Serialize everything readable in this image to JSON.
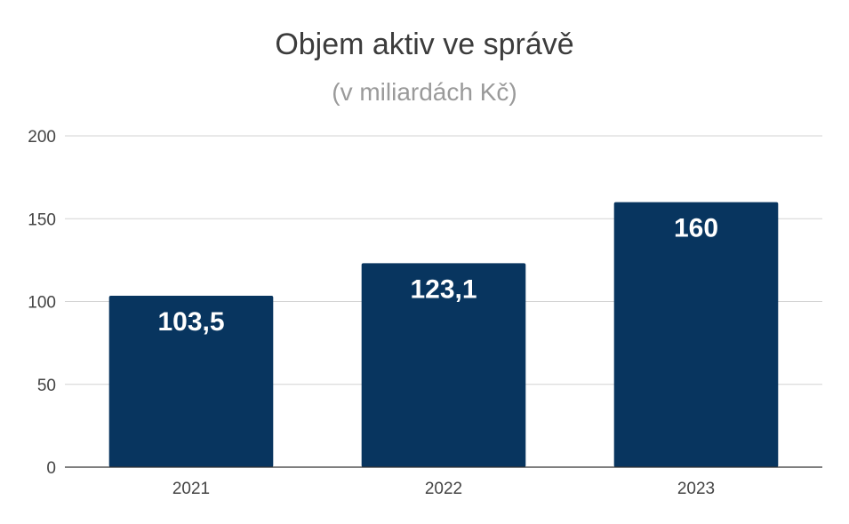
{
  "chart_data": {
    "type": "bar",
    "title": "Objem aktiv ve správě",
    "subtitle": "(v miliardách Kč)",
    "categories": [
      "2021",
      "2022",
      "2023"
    ],
    "values": [
      103.5,
      123.1,
      160
    ],
    "data_labels": [
      "103,5",
      "123,1",
      "160"
    ],
    "yticks": [
      "0",
      "50",
      "100",
      "150",
      "200"
    ],
    "ylim": [
      0,
      200
    ],
    "grid": true,
    "legend": "none",
    "colors": {
      "bar": "#08355f",
      "grid": "#d3d3d3",
      "axis": "#333333"
    }
  }
}
